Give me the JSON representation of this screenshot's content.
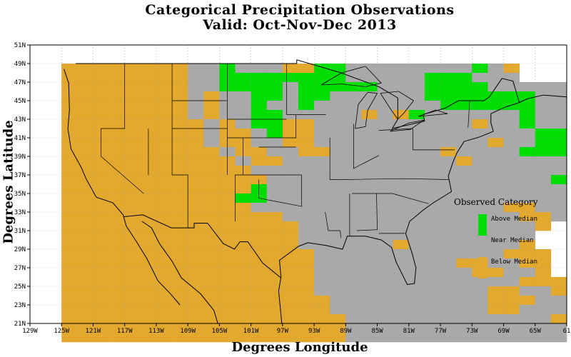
{
  "title": {
    "line1": "Categorical Precipitation Observations",
    "line2": "Valid: Oct-Nov-Dec 2013"
  },
  "axes": {
    "xlabel": "Degrees Longitude",
    "ylabel": "Degrees Latitude",
    "x_ticks": [
      "129W",
      "125W",
      "121W",
      "117W",
      "113W",
      "109W",
      "105W",
      "101W",
      "97W",
      "93W",
      "89W",
      "85W",
      "81W",
      "77W",
      "73W",
      "69W",
      "65W",
      "61"
    ],
    "y_ticks": [
      "51N",
      "49N",
      "47N",
      "45N",
      "43N",
      "41N",
      "39N",
      "37N",
      "35N",
      "33N",
      "31N",
      "29N",
      "27N",
      "25N",
      "23N",
      "21N"
    ],
    "grid": true
  },
  "legend": {
    "title": "Observed Category",
    "items": [
      {
        "label": "Above Median",
        "color": "#00dd00"
      },
      {
        "label": "Near Median",
        "color": "#a9a9a9"
      },
      {
        "label": "Below Median",
        "color": "#e3a82e"
      }
    ]
  },
  "colors": {
    "A": "#00dd00",
    "N": "#a9a9a9",
    "B": "#e3a82e"
  },
  "map_data": {
    "lon_range": [
      -129,
      -61
    ],
    "lat_range": [
      21,
      51
    ],
    "cell_degrees": 2,
    "grid_origin_lon": -125,
    "grid_origin_lat": 49,
    "categories": [
      "BBBBBBBBNNANNNBBAANNNNNNNNANB",
      "BBBBBBBBNNAAAAAAAANNNNNAAANNN",
      "BBBBBBBBNNAAAANAAAAANNNAAAANNNNNNNN",
      "BBBBBBBBNBNNAANAANNNNNNAAAAAAANNNNNNNB",
      "BBBBBBBBNBNNANNANNNNNNNNAAAAAANNNNBBBNB",
      "BBBBBBBBNBNNAANNNNNBNBANNNNNNANNNNNBNNB",
      "BBBBBBBBBNBNAABBNNNNNNNNNNBNNANNNNNNNNN",
      "BBBBBBBBBNBBNABBNNNNNNNNNNNNNNAAANNNNNAAN",
      "BBBBBBBBBNBBNNBBNNNNNNNNNNNBNNAAANNNNAAN",
      "BBBBBBBBBBNBBNNBBNNNNNNNBNNNNAAAAAANNNNAN",
      "BBBBBBBBBBBNBBNNNNNNNNNNNBNNNNNNNNNNAAN",
      "BBBBBBBBBBBBNNNNNNNNNNNNNNNNNNNNNNNNNNN",
      "BBBBBBBBBBBBBNNNNNNNNNNNNNNNNNNANNNNN",
      "BBBBBBBBBBBBANNNNNNNNNNNNNNNNNNNNNNNN",
      "BBBBBBBBBBBAANNNNNNNNNNNNNNNNNNNNBNN",
      "BBBBBBBBBBBBNNNNNNNNNNNNNNNNBBNNNNNNN",
      "BBBBBBBBBBBBBBNNNNNNNNNNNNNNNBBN",
      "BBBBBBBBBBBBBBBNNNNNNNNNNNNNNNB",
      "BBBBBBBBBBBBBBBNNNNNNNNNNNNNNN",
      "BBBBBBBBBBBBBBBNNNNNNBNNNNNNNB",
      "BBBBBBBBBBBBBBBBNNNNNNNNNNNNBBB",
      "BBBBBBBBBBBBBBBBNNNNNNNNNBBNNBB",
      "BBBBBBBBBBBBBBBBNNNNNNNNNNBBNNB",
      "BBBBBBBBBBBBBBBBNNNNNNNNNNNNNBBBBN",
      "BBBBBBBBBBBBBBBBNNNNNNNNNNNBBNNBB",
      "BBBBBBBBBBBBBBBBBNNNNNNNNNNBBBNNNB",
      "BBBBBBBBBBBBBBBBBNNNNNNNNNNBBNNNB",
      "BBBBBBBBBBBBBBBBBBNNNNNNNNNNNNNBB",
      "BBBBBBBBBBBBBBBBBBNNNNNNNNNNNNNNBN",
      "BBBBBBBBBBBBBBBBBBNNNNNNNNNNNNNNBNN"
    ]
  }
}
